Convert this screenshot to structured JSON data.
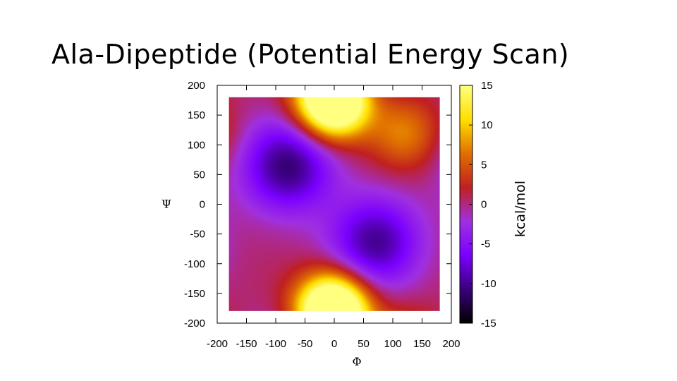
{
  "slide": {
    "title": "Ala-Dipeptide (Potential Energy Scan)"
  },
  "chart_data": {
    "type": "heatmap",
    "xlabel": "Φ",
    "ylabel": "Ψ",
    "colorbar_label": "kcal/mol",
    "xlim": [
      -200,
      200
    ],
    "ylim": [
      -200,
      200
    ],
    "data_range": {
      "x": [
        -180,
        180
      ],
      "y": [
        -180,
        180
      ]
    },
    "zlim": [
      -15,
      15
    ],
    "x_ticks": [
      -200,
      -150,
      -100,
      -50,
      0,
      50,
      100,
      150,
      200
    ],
    "y_ticks": [
      -200,
      -150,
      -100,
      -50,
      0,
      50,
      100,
      150,
      200
    ],
    "z_ticks": [
      -15,
      -10,
      -5,
      0,
      5,
      10,
      15
    ],
    "colormap": [
      "#000000",
      "#3a007a",
      "#7a00ff",
      "#a030e0",
      "#c02020",
      "#e07000",
      "#ffe000",
      "#ffff80"
    ],
    "features": [
      {
        "kind": "minimum",
        "phi": -80,
        "psi": 65,
        "energy": -11
      },
      {
        "kind": "minimum",
        "phi": 70,
        "psi": -65,
        "energy": -10
      },
      {
        "kind": "maximum",
        "phi": 0,
        "psi": 170,
        "energy": 15
      },
      {
        "kind": "maximum",
        "phi": -5,
        "psi": -175,
        "energy": 15
      },
      {
        "kind": "maximum",
        "phi": 120,
        "psi": 120,
        "energy": 7
      }
    ]
  }
}
